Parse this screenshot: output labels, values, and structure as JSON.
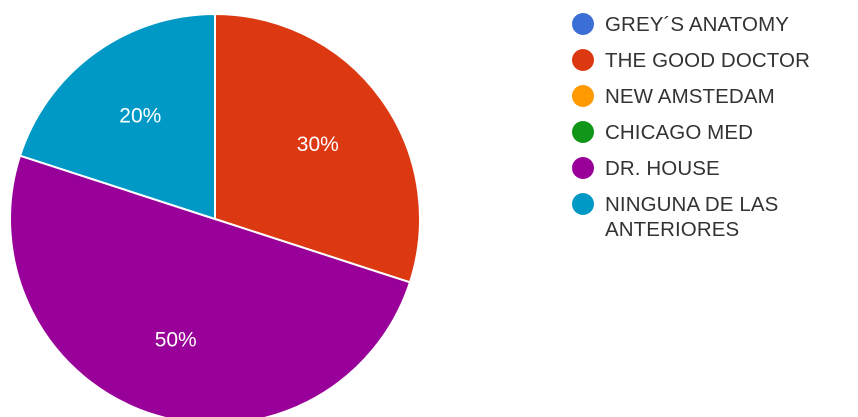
{
  "chart_data": {
    "type": "pie",
    "slices": [
      {
        "label": "GREY´S ANATOMY",
        "value": 0,
        "display": "",
        "color": "#3b6fd6"
      },
      {
        "label": "THE GOOD DOCTOR",
        "value": 30,
        "display": "30%",
        "color": "#dc3912"
      },
      {
        "label": "NEW AMSTEDAM",
        "value": 0,
        "display": "",
        "color": "#ff9900"
      },
      {
        "label": "CHICAGO MED",
        "value": 0,
        "display": "",
        "color": "#109618"
      },
      {
        "label": "DR. HOUSE",
        "value": 50,
        "display": "50%",
        "color": "#990099"
      },
      {
        "label": "NINGUNA DE LAS ANTERIORES",
        "value": 20,
        "display": "20%",
        "color": "#0099c6"
      }
    ],
    "start_angle_deg": 90,
    "direction": "clockwise",
    "legend_position": "right"
  }
}
